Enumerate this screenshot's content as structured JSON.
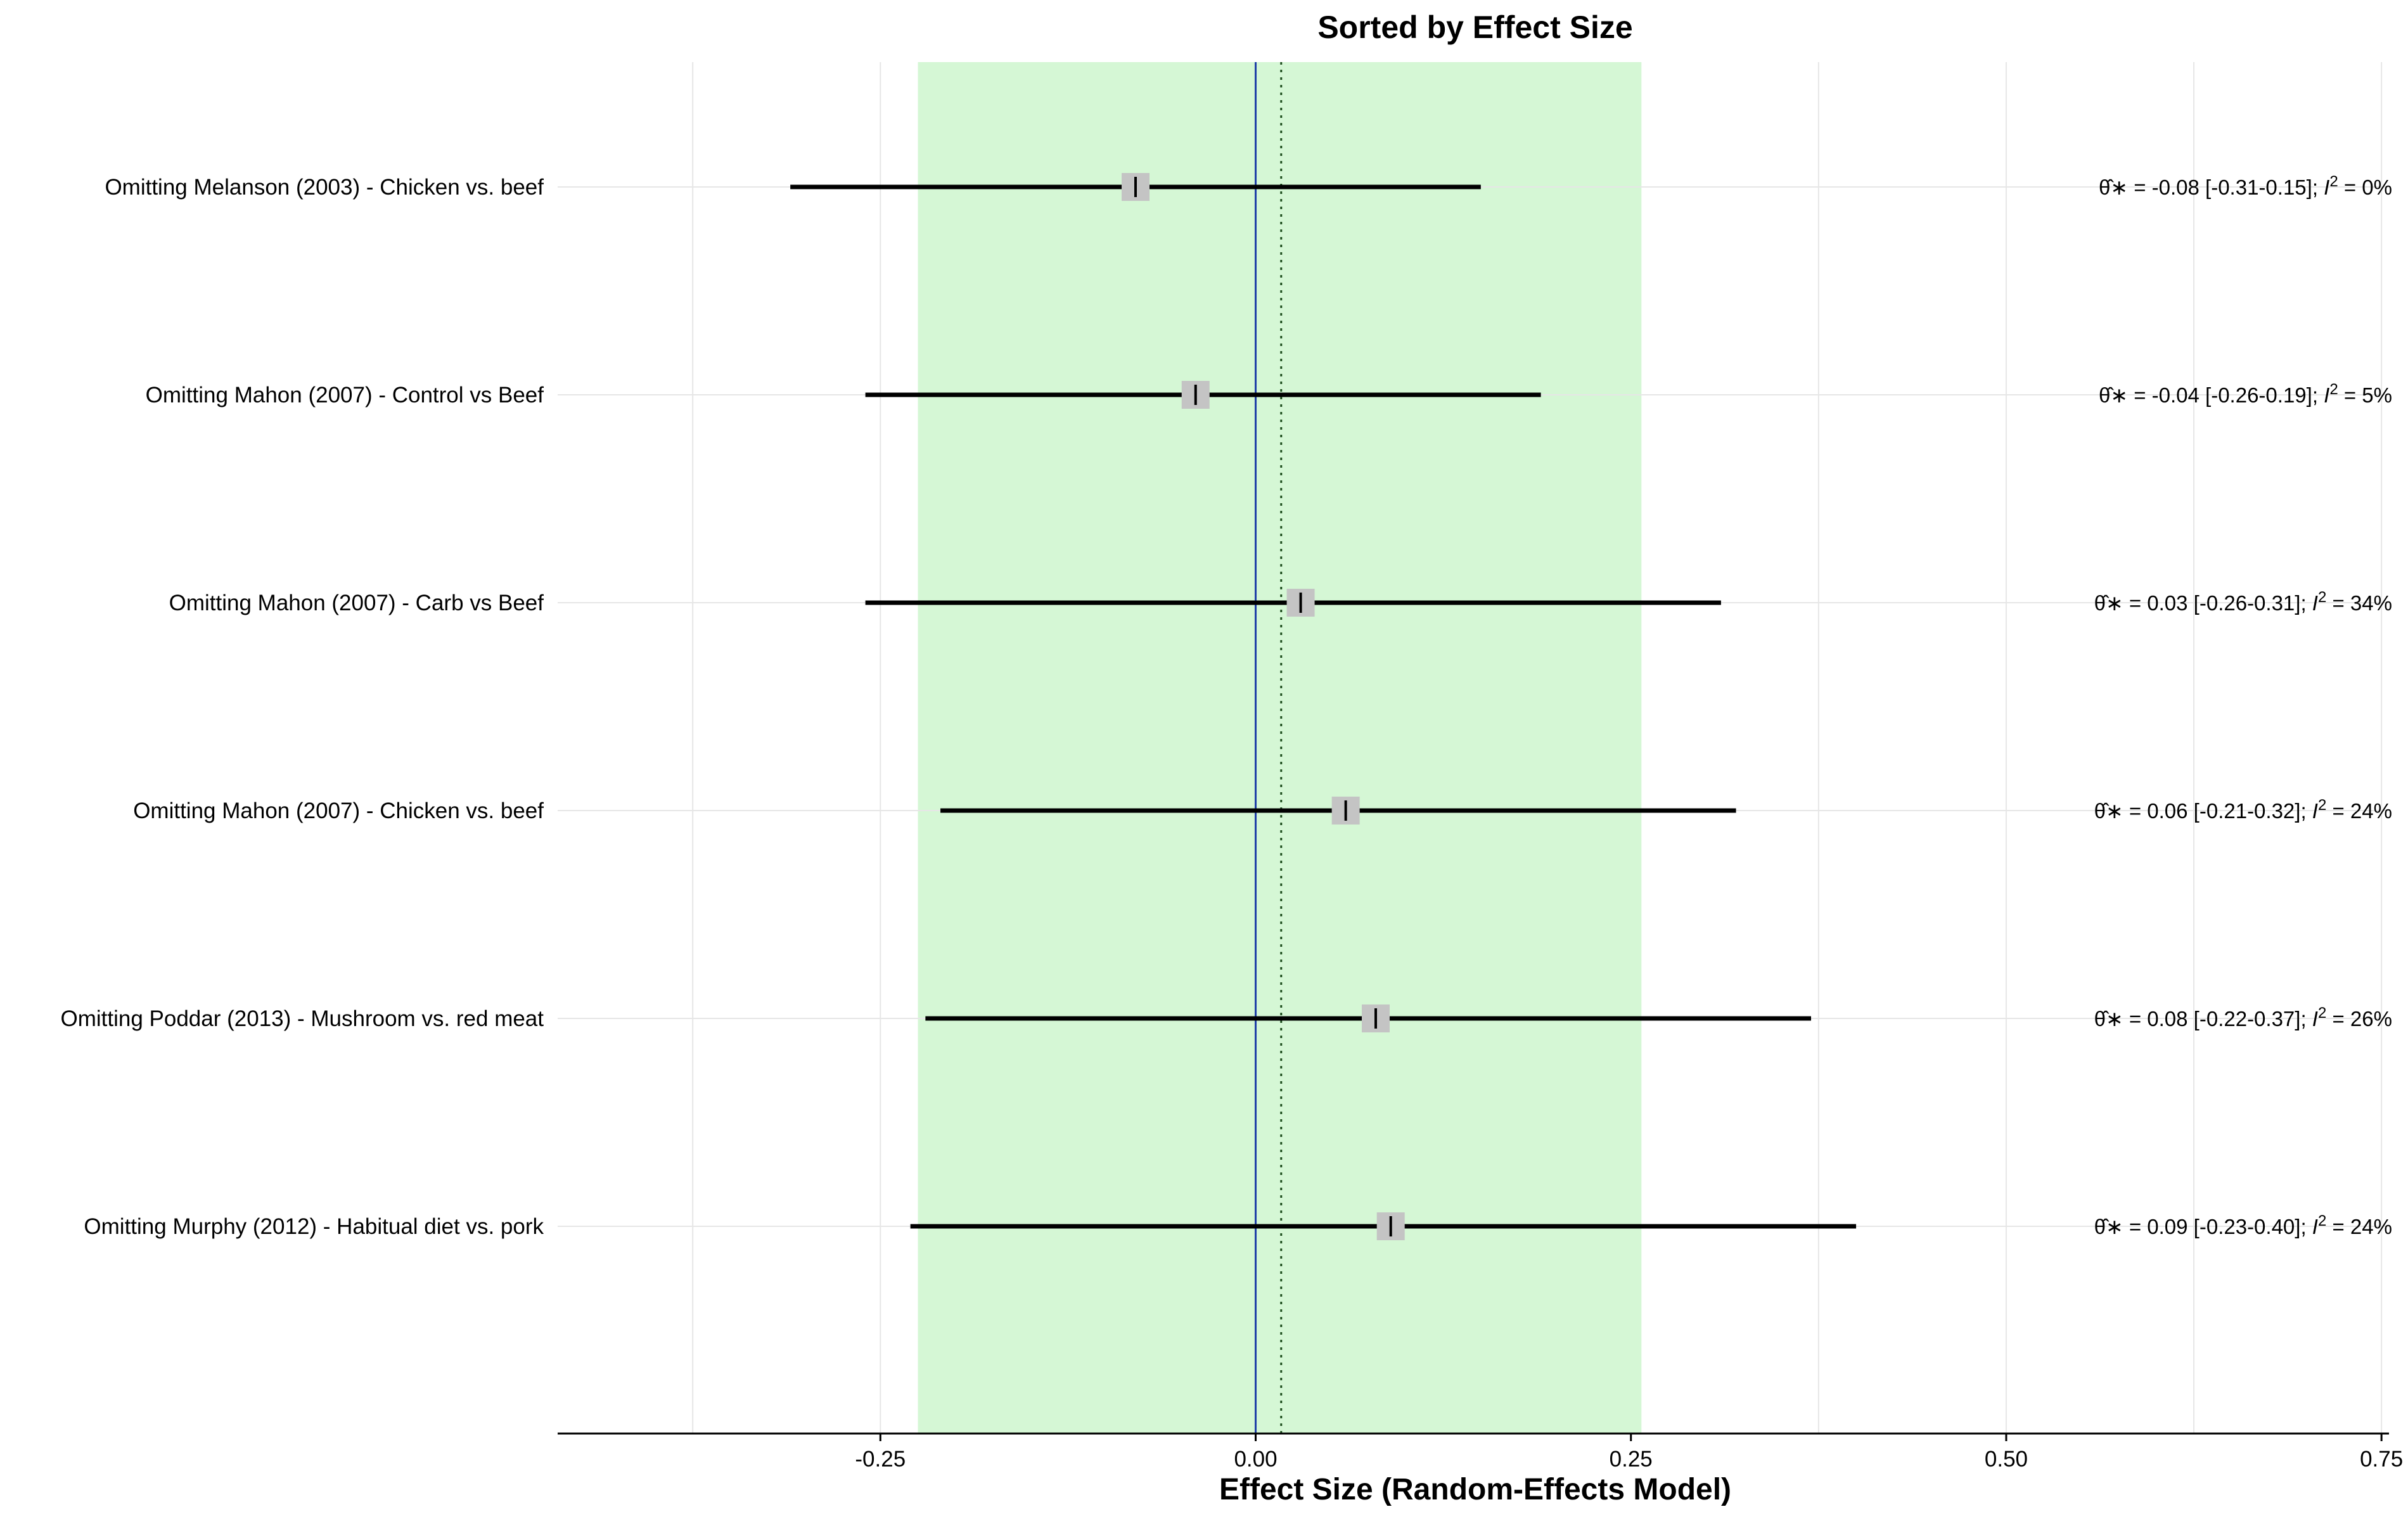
{
  "chart_data": {
    "type": "forest",
    "title": "Sorted by Effect Size",
    "xlabel": "Effect Size (Random-Effects Model)",
    "xlim": [
      -0.465,
      0.755
    ],
    "xticks": [
      -0.25,
      0.0,
      0.25,
      0.5,
      0.75
    ],
    "xtick_labels": [
      "-0.25",
      "0.00",
      "0.25",
      "0.50",
      "0.75"
    ],
    "reference_line": 0.0,
    "pooled_estimate_line": 0.017,
    "pooled_ci_band": [
      -0.225,
      0.257
    ],
    "studies": [
      {
        "label": "Omitting Melanson (2003) - Chicken vs. beef",
        "estimate": -0.08,
        "ci_low": -0.31,
        "ci_high": 0.15,
        "stat_theta": "= -0.08 [-0.31-0.15];",
        "stat_i2": "=  0%"
      },
      {
        "label": "Omitting Mahon (2007) - Control vs Beef",
        "estimate": -0.04,
        "ci_low": -0.26,
        "ci_high": 0.19,
        "stat_theta": "= -0.04 [-0.26-0.19];",
        "stat_i2": "=  5%"
      },
      {
        "label": "Omitting Mahon (2007) - Carb vs Beef",
        "estimate": 0.03,
        "ci_low": -0.26,
        "ci_high": 0.31,
        "stat_theta": "=  0.03 [-0.26-0.31];",
        "stat_i2": "= 34%"
      },
      {
        "label": "Omitting Mahon (2007) - Chicken vs. beef",
        "estimate": 0.06,
        "ci_low": -0.21,
        "ci_high": 0.32,
        "stat_theta": "=  0.06 [-0.21-0.32];",
        "stat_i2": "= 24%"
      },
      {
        "label": "Omitting Poddar (2013) - Mushroom vs. red meat",
        "estimate": 0.08,
        "ci_low": -0.22,
        "ci_high": 0.37,
        "stat_theta": "=  0.08 [-0.22-0.37];",
        "stat_i2": "= 26%"
      },
      {
        "label": "Omitting Murphy (2012) - Habitual diet vs. pork",
        "estimate": 0.09,
        "ci_low": -0.23,
        "ci_high": 0.4,
        "stat_theta": "=  0.09 [-0.23-0.40];",
        "stat_i2": "= 24%"
      }
    ],
    "colors": {
      "ci_band": "#d5f7d5",
      "reference_line": "#1f3fa8",
      "pooled_line": "#1a4a1a",
      "ci_line": "#000000",
      "point_marker": "#c4c4c4",
      "grid": "#e6e6e6"
    },
    "grid": true
  }
}
